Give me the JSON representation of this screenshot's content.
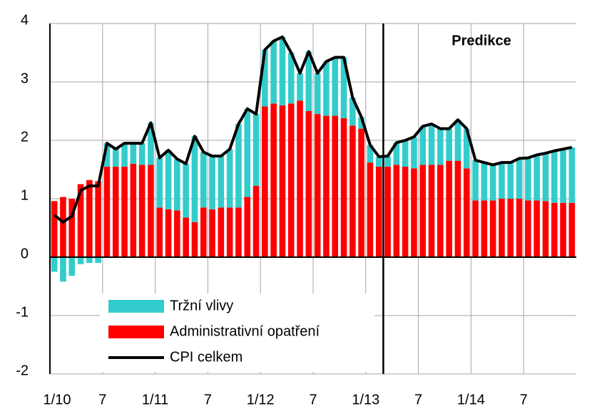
{
  "chart_data": {
    "type": "bar",
    "stacked": true,
    "categories": [
      "1/10",
      null,
      null,
      null,
      null,
      null,
      "7",
      null,
      null,
      null,
      null,
      null,
      "1/11",
      null,
      null,
      null,
      null,
      null,
      "7",
      null,
      null,
      null,
      null,
      null,
      "1/12",
      null,
      null,
      null,
      null,
      null,
      "7",
      null,
      null,
      null,
      null,
      null,
      "1/13",
      null,
      null,
      null,
      null,
      null,
      "7",
      null,
      null,
      null,
      null,
      null,
      "1/14",
      null,
      null,
      null,
      null,
      null,
      "7",
      null,
      null,
      null,
      null,
      null
    ],
    "series": [
      {
        "name": "Tržní vlivy",
        "type": "bar",
        "color": "#33cccc",
        "values": [
          -0.25,
          -0.42,
          -0.32,
          -0.12,
          -0.1,
          -0.1,
          0.4,
          0.3,
          0.4,
          0.35,
          0.37,
          0.72,
          0.85,
          1.01,
          0.88,
          0.92,
          1.47,
          0.95,
          0.91,
          0.88,
          1.0,
          1.43,
          1.51,
          1.23,
          0.97,
          1.07,
          1.17,
          0.87,
          0.47,
          1.02,
          0.7,
          0.93,
          1.0,
          1.04,
          0.48,
          0.2,
          0.3,
          0.17,
          0.18,
          0.38,
          0.45,
          0.54,
          0.66,
          0.7,
          0.62,
          0.55,
          0.7,
          0.68,
          0.69,
          0.65,
          0.61,
          0.62,
          0.62,
          0.69,
          0.73,
          0.78,
          0.82,
          0.89,
          0.92,
          0.95
        ]
      },
      {
        "name": "Administrativní opatření",
        "type": "bar",
        "color": "#ff0000",
        "values": [
          0.96,
          1.03,
          1.0,
          1.25,
          1.32,
          1.3,
          1.55,
          1.55,
          1.55,
          1.6,
          1.58,
          1.58,
          0.85,
          0.82,
          0.8,
          0.68,
          0.6,
          0.85,
          0.82,
          0.85,
          0.85,
          0.85,
          1.03,
          1.22,
          2.58,
          2.63,
          2.6,
          2.63,
          2.68,
          2.5,
          2.45,
          2.42,
          2.42,
          2.38,
          2.25,
          2.2,
          1.62,
          1.55,
          1.55,
          1.58,
          1.55,
          1.52,
          1.58,
          1.58,
          1.58,
          1.65,
          1.65,
          1.52,
          0.97,
          0.97,
          0.97,
          1.0,
          1.0,
          1.0,
          0.97,
          0.97,
          0.96,
          0.93,
          0.93,
          0.93
        ]
      },
      {
        "name": "CPI celkem",
        "type": "line",
        "color": "#000000",
        "values": [
          0.72,
          0.6,
          0.7,
          1.14,
          1.22,
          1.22,
          1.95,
          1.85,
          1.95,
          1.95,
          1.95,
          2.3,
          1.7,
          1.83,
          1.68,
          1.6,
          2.07,
          1.8,
          1.73,
          1.73,
          1.85,
          2.28,
          2.54,
          2.45,
          3.55,
          3.7,
          3.77,
          3.5,
          3.15,
          3.52,
          3.15,
          3.35,
          3.42,
          3.42,
          2.73,
          2.4,
          1.92,
          1.72,
          1.73,
          1.96,
          2.0,
          2.06,
          2.24,
          2.28,
          2.2,
          2.2,
          2.35,
          2.2,
          1.66,
          1.62,
          1.58,
          1.62,
          1.62,
          1.69,
          1.7,
          1.75,
          1.78,
          1.82,
          1.85,
          1.88
        ]
      }
    ],
    "ylim": [
      -2,
      4
    ],
    "yticks": [
      -2,
      -1,
      0,
      1,
      2,
      3,
      4
    ],
    "grid": true,
    "legend": "lower-left",
    "prediction": {
      "label": "Predikce",
      "start_index": 38
    }
  }
}
